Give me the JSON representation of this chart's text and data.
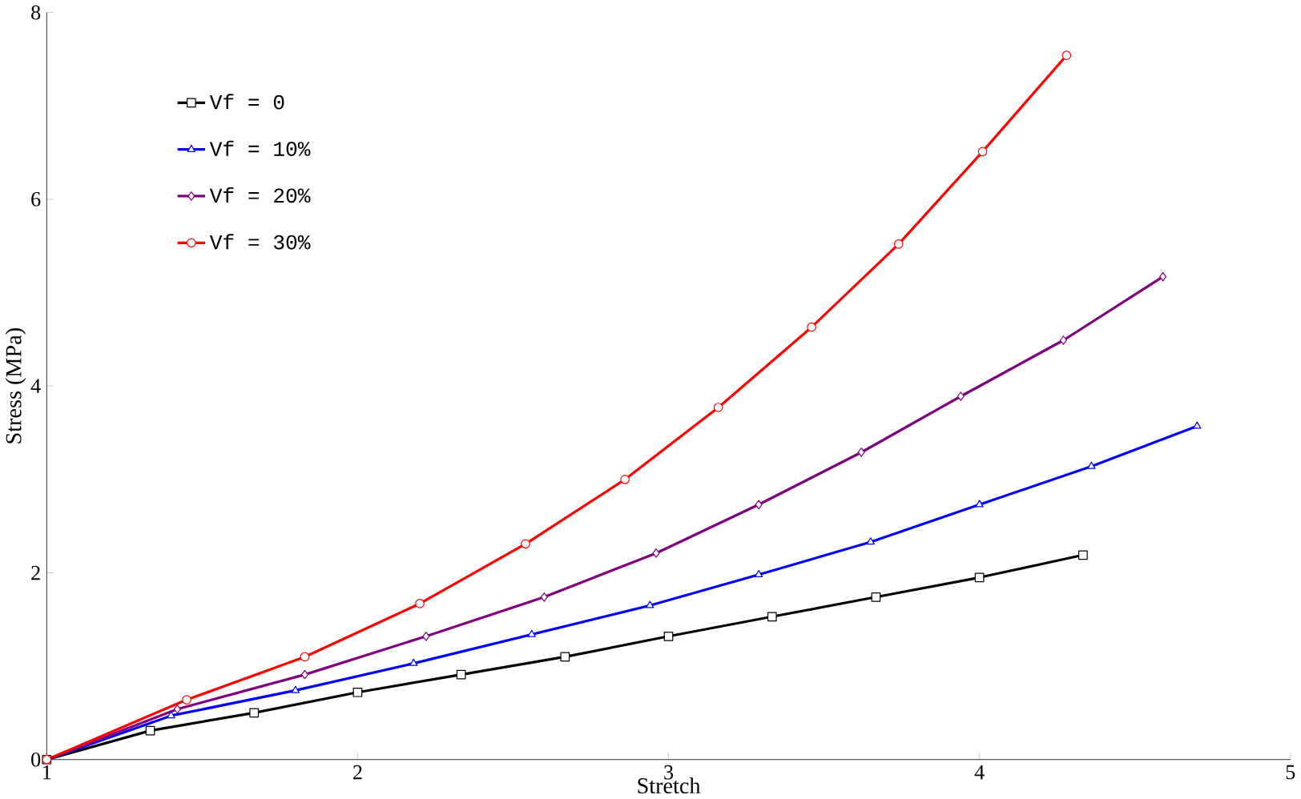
{
  "chart_data": {
    "type": "line",
    "xlabel": "Stretch",
    "ylabel": "Stress (MPa)",
    "xlim": [
      1,
      5
    ],
    "ylim": [
      0,
      8
    ],
    "xticks": [
      1,
      2,
      3,
      4,
      5
    ],
    "yticks": [
      0,
      2,
      4,
      6,
      8
    ],
    "grid": false,
    "legend": "top left",
    "series": [
      {
        "name": "Vf = 0",
        "color": "#000000",
        "marker": "square",
        "x": [
          1,
          1.333,
          1.667,
          2,
          2.333,
          2.667,
          3,
          3.333,
          3.667,
          4,
          4.333
        ],
        "values": [
          0,
          0.31,
          0.5,
          0.72,
          0.91,
          1.1,
          1.32,
          1.53,
          1.74,
          1.95,
          2.19
        ]
      },
      {
        "name": "Vf = 10%",
        "color": "#0000ff",
        "marker": "triangle",
        "x": [
          1,
          1.4,
          1.8,
          2.18,
          2.56,
          2.94,
          3.29,
          3.65,
          4.0,
          4.36,
          4.7
        ],
        "values": [
          0,
          0.47,
          0.74,
          1.03,
          1.34,
          1.65,
          1.98,
          2.33,
          2.73,
          3.14,
          3.57
        ]
      },
      {
        "name": "Vf = 20%",
        "color": "#800080",
        "marker": "diamond",
        "x": [
          1,
          1.42,
          1.83,
          2.22,
          2.6,
          2.96,
          3.29,
          3.62,
          3.94,
          4.27,
          4.59
        ],
        "values": [
          0,
          0.54,
          0.91,
          1.32,
          1.74,
          2.21,
          2.73,
          3.29,
          3.89,
          4.49,
          5.17
        ]
      },
      {
        "name": "Vf = 30%",
        "color": "#ff0000",
        "marker": "circle",
        "x": [
          1,
          1.45,
          1.83,
          2.2,
          2.54,
          2.86,
          3.16,
          3.46,
          3.74,
          4.01,
          4.28
        ],
        "values": [
          0,
          0.64,
          1.1,
          1.67,
          2.31,
          3.0,
          3.77,
          4.63,
          5.52,
          6.51,
          7.54
        ]
      }
    ]
  }
}
